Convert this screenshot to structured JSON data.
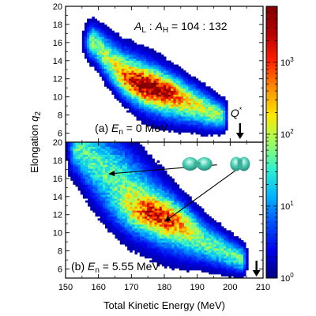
{
  "chart_data": {
    "type": "heatmap",
    "xlabel": "Total Kinetic Energy (MeV)",
    "ylabel_main": "Elongation ",
    "ylabel_var": "q",
    "ylabel_sub": "2",
    "xlim": [
      150,
      210
    ],
    "x_ticks": [
      "150",
      "160",
      "170",
      "180",
      "190",
      "200",
      "210"
    ],
    "colorbar": {
      "scale": "log",
      "range": [
        1,
        6000
      ],
      "tick_labels": [
        {
          "base": "10",
          "exp": "0",
          "value": 1
        },
        {
          "base": "10",
          "exp": "1",
          "value": 10
        },
        {
          "base": "10",
          "exp": "2",
          "value": 100
        },
        {
          "base": "10",
          "exp": "3",
          "value": 1000
        }
      ],
      "colors": [
        "#000080",
        "#0000e6",
        "#0050ff",
        "#00b4ff",
        "#30f0d0",
        "#a0ff60",
        "#ffe600",
        "#ff8c00",
        "#ff2000",
        "#b40000",
        "#800000"
      ]
    },
    "annotation": {
      "l1": "A",
      "l1_sub": "L",
      "mid": " : ",
      "l2": "A",
      "l2_sub": "H",
      "eq": " = ",
      "ratio": "104 : 132"
    },
    "panels": [
      {
        "label_prefix": "(a) ",
        "label_var": "E",
        "label_sub": "n",
        "label_suffix": " = 0 MeV",
        "ylim": [
          5,
          20
        ],
        "y_ticks": [
          "6",
          "8",
          "10",
          "12",
          "14",
          "16",
          "18",
          "20"
        ],
        "arrow_x": 203,
        "arrow_label": "Q",
        "arrow_sup": "*",
        "band": [
          [
            158,
            16.0
          ],
          [
            162,
            14.5
          ],
          [
            167,
            12.8
          ],
          [
            172,
            11.6
          ],
          [
            177,
            10.6
          ],
          [
            182,
            9.8
          ],
          [
            187,
            9.1
          ],
          [
            193,
            8.3
          ],
          [
            197,
            7.8
          ]
        ],
        "widths": [
          2.5,
          3.0,
          3.5,
          4.0,
          4.0,
          3.5,
          3.0,
          2.5,
          2.0
        ],
        "peak": [
          175,
          11.0
        ],
        "peak_value": 5000
      },
      {
        "label_prefix": "(b) ",
        "label_var": "E",
        "label_sub": "n",
        "label_suffix": " = 5.55 MeV",
        "ylim": [
          5,
          20
        ],
        "y_ticks": [
          "6",
          "8",
          "10",
          "12",
          "14",
          "16",
          "18",
          "20"
        ],
        "arrow_x": 208,
        "arrow_label": "",
        "arrow_sup": "",
        "band": [
          [
            153,
            19.5
          ],
          [
            157,
            18.2
          ],
          [
            161,
            17.0
          ],
          [
            165,
            15.8
          ],
          [
            170,
            14.3
          ],
          [
            175,
            12.8
          ],
          [
            180,
            11.4
          ],
          [
            186,
            10.0
          ],
          [
            192,
            8.8
          ],
          [
            198,
            7.8
          ],
          [
            203,
            7.0
          ]
        ],
        "widths": [
          4.0,
          5.0,
          5.5,
          6.0,
          6.0,
          5.5,
          5.0,
          4.0,
          3.0,
          2.5,
          2.0
        ],
        "peak": [
          176,
          11.6
        ],
        "peak_value": 2000,
        "pointers": [
          {
            "from": [
              196,
              17.5
            ],
            "to": [
              163,
              16.5
            ]
          },
          {
            "from": [
              204,
              17.5
            ],
            "to": [
              180,
              11.2
            ]
          }
        ],
        "shapes": [
          {
            "x": 190,
            "y": 17.6,
            "kind": "scission"
          },
          {
            "x": 203,
            "y": 17.6,
            "kind": "compact"
          }
        ]
      }
    ]
  }
}
